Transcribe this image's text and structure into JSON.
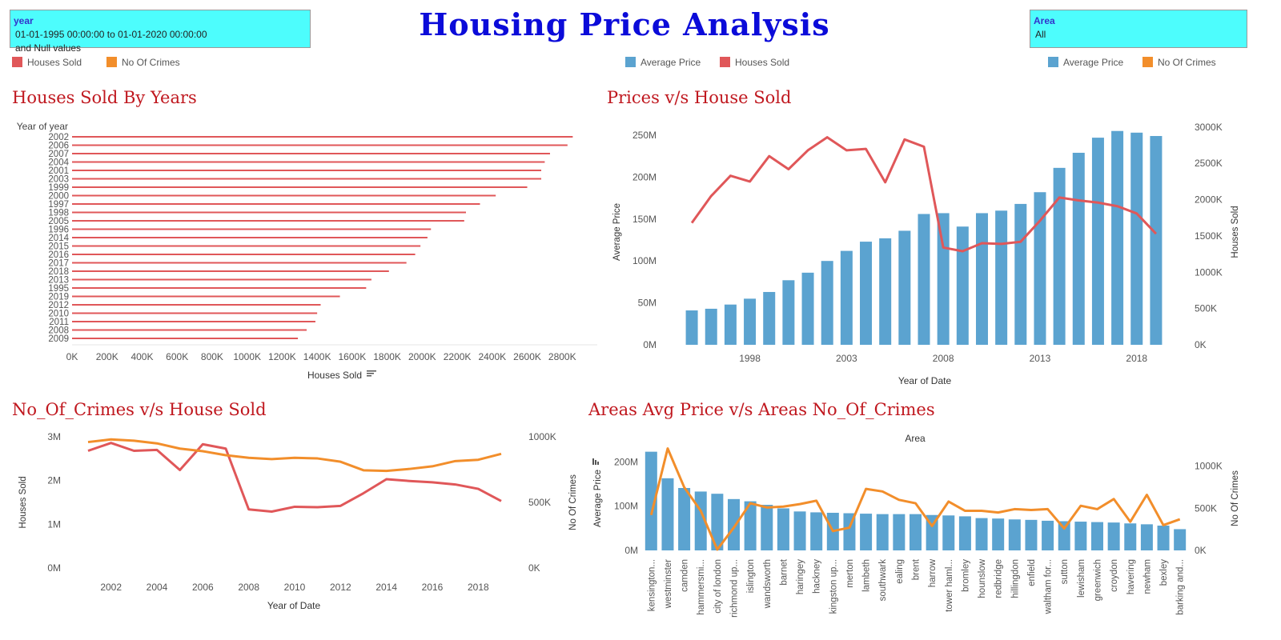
{
  "dashboard_title": "Housing Price Analysis",
  "filters": {
    "year": {
      "label": "year",
      "line1": "01-01-1995 00:00:00 to 01-01-2020 00:00:00",
      "line2": "and Null values"
    },
    "area": {
      "label": "Area",
      "value": "All"
    }
  },
  "colors": {
    "houses_sold": "#e05759",
    "crimes": "#f28e2b",
    "avg_price": "#5ba3d0",
    "title_blue": "#0b0bd9",
    "panel_title": "#c0181f",
    "filter_bg": "#4dfdfd"
  },
  "legends": {
    "left": [
      {
        "label": "Houses Sold",
        "color": "#e05759"
      },
      {
        "label": "No Of Crimes",
        "color": "#f28e2b"
      }
    ],
    "middle": [
      {
        "label": "Average Price",
        "color": "#5ba3d0"
      },
      {
        "label": "Houses Sold",
        "color": "#e05759"
      }
    ],
    "right": [
      {
        "label": "Average Price",
        "color": "#5ba3d0"
      },
      {
        "label": "No Of Crimes",
        "color": "#f28e2b"
      }
    ]
  },
  "panels": {
    "p1": "Houses Sold By Years",
    "p2": "Prices v/s House Sold",
    "p3": "No_Of_Crimes v/s House Sold",
    "p4": "Areas Avg Price v/s Areas No_Of_Crimes"
  },
  "chart_data": [
    {
      "id": "houses-sold-by-years",
      "type": "bar",
      "orientation": "horizontal",
      "title": "Houses Sold By Years",
      "category_header": "Year of year",
      "xlabel": "Houses Sold",
      "xlim": [
        0,
        3000000
      ],
      "xticks": [
        0,
        200000,
        400000,
        600000,
        800000,
        1000000,
        1200000,
        1400000,
        1600000,
        1800000,
        2000000,
        2200000,
        2400000,
        2600000,
        2800000
      ],
      "xtick_labels": [
        "0K",
        "200K",
        "400K",
        "600K",
        "800K",
        "1000K",
        "1200K",
        "1400K",
        "1600K",
        "1800K",
        "2000K",
        "2200K",
        "2400K",
        "2600K",
        "2800K"
      ],
      "categories": [
        "2002",
        "2006",
        "2007",
        "2004",
        "2001",
        "2003",
        "1999",
        "2000",
        "1997",
        "1998",
        "2005",
        "1996",
        "2014",
        "2015",
        "2016",
        "2017",
        "2018",
        "2013",
        "1995",
        "2019",
        "2012",
        "2010",
        "2011",
        "2008",
        "2009"
      ],
      "values": [
        2860000,
        2830000,
        2730000,
        2700000,
        2680000,
        2680000,
        2600000,
        2420000,
        2330000,
        2250000,
        2240000,
        2050000,
        2030000,
        1990000,
        1960000,
        1910000,
        1810000,
        1710000,
        1680000,
        1530000,
        1420000,
        1400000,
        1390000,
        1340000,
        1290000
      ]
    },
    {
      "id": "prices-vs-house-sold",
      "type": "bar",
      "title": "Prices v/s House Sold",
      "xlabel": "Year of Date",
      "ylabel_left": "Average Price",
      "ylabel_right": "Houses Sold",
      "x": [
        1995,
        1996,
        1997,
        1998,
        1999,
        2000,
        2001,
        2002,
        2003,
        2004,
        2005,
        2006,
        2007,
        2008,
        2009,
        2010,
        2011,
        2012,
        2013,
        2014,
        2015,
        2016,
        2017,
        2018,
        2019
      ],
      "xticks": [
        1998,
        2003,
        2008,
        2013,
        2018
      ],
      "ylim_left": [
        0,
        270000000
      ],
      "yticks_left": [
        0,
        50000000,
        100000000,
        150000000,
        200000000,
        250000000
      ],
      "ytick_labels_left": [
        "0M",
        "50M",
        "100M",
        "150M",
        "200M",
        "250M"
      ],
      "ylim_right": [
        0,
        3120000
      ],
      "yticks_right": [
        0,
        500000,
        1000000,
        1500000,
        2000000,
        2500000,
        3000000
      ],
      "ytick_labels_right": [
        "0K",
        "500K",
        "1000K",
        "1500K",
        "2000K",
        "2500K",
        "3000K"
      ],
      "series": [
        {
          "name": "Average Price",
          "kind": "bar",
          "axis": "left",
          "color": "#5ba3d0",
          "values": [
            41000000,
            43000000,
            48000000,
            55000000,
            63000000,
            77000000,
            86000000,
            100000000,
            112000000,
            123000000,
            127000000,
            136000000,
            156000000,
            157000000,
            141000000,
            157000000,
            160000000,
            168000000,
            182000000,
            211000000,
            229000000,
            247000000,
            255000000,
            253000000,
            249000000
          ]
        },
        {
          "name": "Houses Sold",
          "kind": "line",
          "axis": "right",
          "color": "#e05759",
          "values": [
            1680000,
            2050000,
            2330000,
            2250000,
            2600000,
            2420000,
            2680000,
            2860000,
            2680000,
            2700000,
            2240000,
            2830000,
            2730000,
            1340000,
            1290000,
            1400000,
            1390000,
            1420000,
            1710000,
            2030000,
            1990000,
            1960000,
            1910000,
            1810000,
            1530000
          ]
        }
      ]
    },
    {
      "id": "crimes-vs-house-sold",
      "type": "line",
      "title": "No_Of_Crimes v/s House Sold",
      "xlabel": "Year of Date",
      "ylabel_left": "Houses Sold",
      "ylabel_right": "No Of Crimes",
      "x": [
        2001,
        2002,
        2003,
        2004,
        2005,
        2006,
        2007,
        2008,
        2009,
        2010,
        2011,
        2012,
        2013,
        2014,
        2015,
        2016,
        2017,
        2018,
        2019
      ],
      "xticks": [
        2002,
        2004,
        2006,
        2008,
        2010,
        2012,
        2014,
        2016,
        2018
      ],
      "ylim_left": [
        0,
        3000000
      ],
      "yticks_left": [
        0,
        1000000,
        2000000,
        3000000
      ],
      "ytick_labels_left": [
        "0M",
        "1M",
        "2M",
        "3M"
      ],
      "ylim_right": [
        0,
        1000000
      ],
      "yticks_right": [
        0,
        500000,
        1000000
      ],
      "ytick_labels_right": [
        "0K",
        "500K",
        "1000K"
      ],
      "series": [
        {
          "name": "Houses Sold",
          "axis": "left",
          "color": "#e05759",
          "values": [
            2680000,
            2860000,
            2680000,
            2700000,
            2240000,
            2830000,
            2730000,
            1340000,
            1290000,
            1400000,
            1390000,
            1420000,
            1710000,
            2030000,
            1990000,
            1960000,
            1910000,
            1810000,
            1530000
          ]
        },
        {
          "name": "No Of Crimes",
          "axis": "right",
          "color": "#f28e2b",
          "values": [
            960000,
            980000,
            970000,
            950000,
            910000,
            890000,
            860000,
            840000,
            830000,
            840000,
            835000,
            810000,
            745000,
            740000,
            755000,
            775000,
            815000,
            825000,
            870000
          ]
        }
      ]
    },
    {
      "id": "areas-price-vs-crimes",
      "type": "bar",
      "title": "Areas Avg Price v/s Areas No_Of_Crimes",
      "column_header": "Area",
      "ylabel_left": "Average Price",
      "ylabel_right": "No Of Crimes",
      "categories": [
        "kensington...",
        "westminster",
        "camden",
        "hammersmi...",
        "city of london",
        "richmond up...",
        "islington",
        "wandsworth",
        "barnet",
        "haringey",
        "hackney",
        "kingston up...",
        "merton",
        "lambeth",
        "southwark",
        "ealing",
        "brent",
        "harrow",
        "tower haml...",
        "bromley",
        "hounslow",
        "redbridge",
        "hillingdon",
        "enfield",
        "waltham for...",
        "sutton",
        "lewisham",
        "greenwich",
        "croydon",
        "havering",
        "newham",
        "bexley",
        "barking and..."
      ],
      "ylim_left": [
        0,
        235000000
      ],
      "yticks_left": [
        0,
        100000000,
        200000000
      ],
      "ytick_labels_left": [
        "0M",
        "100M",
        "200M"
      ],
      "ylim_right": [
        0,
        1235000
      ],
      "yticks_right": [
        0,
        500000,
        1000000
      ],
      "ytick_labels_right": [
        "0K",
        "500K",
        "1000K"
      ],
      "series": [
        {
          "name": "Average Price",
          "kind": "bar",
          "axis": "left",
          "color": "#5ba3d0",
          "values": [
            223000000,
            163000000,
            141000000,
            133000000,
            128000000,
            116000000,
            111000000,
            103000000,
            95000000,
            88000000,
            86000000,
            85000000,
            84000000,
            83000000,
            82000000,
            82000000,
            82000000,
            80000000,
            79000000,
            77000000,
            73000000,
            72000000,
            70000000,
            69000000,
            67000000,
            66000000,
            65000000,
            64000000,
            63000000,
            61000000,
            59000000,
            56000000,
            48000000
          ]
        },
        {
          "name": "No Of Crimes",
          "kind": "line",
          "axis": "right",
          "color": "#f28e2b",
          "values": [
            420000,
            1210000,
            750000,
            470000,
            10000,
            270000,
            560000,
            510000,
            520000,
            550000,
            590000,
            230000,
            270000,
            730000,
            700000,
            600000,
            560000,
            290000,
            580000,
            470000,
            470000,
            450000,
            490000,
            480000,
            490000,
            260000,
            530000,
            490000,
            610000,
            340000,
            660000,
            300000,
            370000
          ]
        }
      ]
    }
  ]
}
